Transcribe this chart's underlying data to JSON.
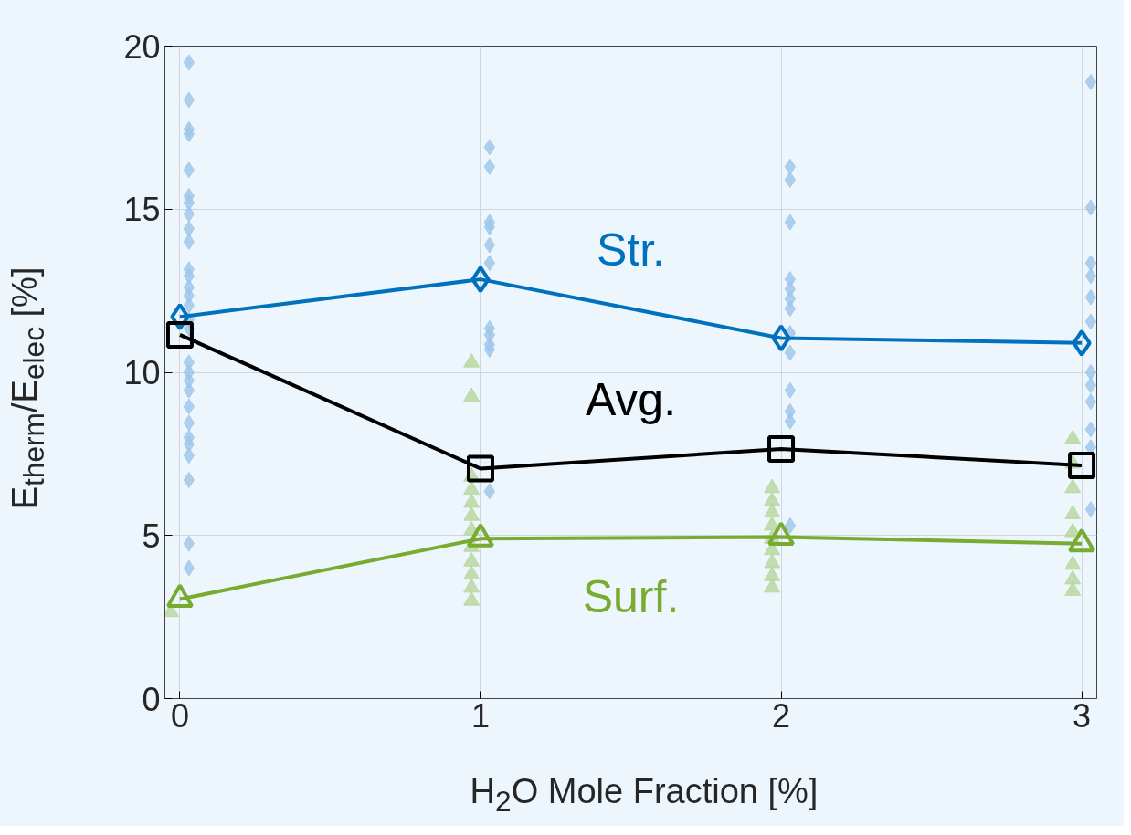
{
  "chart_data": {
    "type": "line",
    "xlabel": "H$_{2}$O Mole Fraction [%]",
    "ylabel": "E$_{therm}$/E$_{elec}$ [%]",
    "xlim": [
      -0.05,
      3.05
    ],
    "ylim": [
      0,
      20
    ],
    "xticks": [
      0,
      1,
      2,
      3
    ],
    "yticks": [
      0,
      5,
      10,
      15,
      20
    ],
    "grid": true,
    "line_style": "solid",
    "series": [
      {
        "type": "scatter",
        "marker": "diamond",
        "color": "#9cc6ea",
        "x": [
          0.03,
          0.03,
          0.03,
          0.03,
          0.03,
          0.03,
          0.03,
          0.03,
          0.03,
          0.03,
          0.03,
          0.03,
          0.03,
          0.03,
          0.03,
          0.03,
          0.03,
          0.03,
          0.03,
          0.03,
          0.03,
          0.03,
          0.03,
          0.03,
          0.03,
          0.03,
          0.03,
          0.03,
          0.03,
          1.03,
          1.03,
          1.03,
          1.03,
          1.03,
          1.03,
          1.03,
          1.03,
          1.03,
          1.03,
          1.03,
          2.03,
          2.03,
          2.03,
          2.03,
          2.03,
          2.03,
          2.03,
          2.03,
          2.03,
          2.03,
          2.03,
          2.03,
          2.03,
          3.03,
          3.03,
          3.03,
          3.03,
          3.03,
          3.03,
          3.03,
          3.03,
          3.03,
          3.03,
          3.03,
          3.03
        ],
        "values": [
          19.5,
          18.35,
          17.45,
          17.3,
          16.2,
          15.4,
          15.2,
          14.85,
          14.4,
          14.0,
          13.15,
          12.95,
          12.6,
          12.35,
          12.05,
          11.6,
          11.35,
          10.3,
          10.0,
          9.75,
          9.45,
          8.95,
          8.45,
          8.0,
          7.8,
          7.45,
          6.7,
          4.75,
          4.0,
          16.9,
          16.3,
          14.6,
          14.45,
          13.9,
          13.35,
          11.35,
          11.15,
          10.85,
          10.7,
          6.35,
          16.3,
          15.9,
          14.6,
          12.85,
          12.55,
          12.25,
          11.95,
          11.2,
          10.6,
          9.45,
          8.8,
          8.5,
          5.3,
          18.9,
          15.05,
          13.35,
          12.95,
          12.3,
          11.55,
          10.0,
          9.6,
          9.1,
          8.25,
          7.7,
          5.8
        ]
      },
      {
        "type": "scatter",
        "marker": "triangle",
        "color": "#b5d69a",
        "x": [
          -0.03,
          0.97,
          0.97,
          0.97,
          0.97,
          0.97,
          0.97,
          0.97,
          0.97,
          0.97,
          0.97,
          0.97,
          0.97,
          1.97,
          1.97,
          1.97,
          1.97,
          1.97,
          1.97,
          1.97,
          1.97,
          1.97,
          2.97,
          2.97,
          2.97,
          2.97,
          2.97,
          2.97,
          2.97,
          2.97
        ],
        "values": [
          2.65,
          10.3,
          9.25,
          6.8,
          6.4,
          6.0,
          5.6,
          5.15,
          4.65,
          4.2,
          3.8,
          3.4,
          3.0,
          6.45,
          6.05,
          5.7,
          5.3,
          4.9,
          4.55,
          4.15,
          3.75,
          3.4,
          7.95,
          7.2,
          6.45,
          5.65,
          5.1,
          4.1,
          3.65,
          3.3
        ]
      },
      {
        "name": "Str.",
        "marker": "diamond",
        "color": "#0072bd",
        "x": [
          0,
          1,
          2,
          3
        ],
        "values": [
          11.7,
          12.85,
          11.05,
          10.9
        ]
      },
      {
        "name": "Avg.",
        "marker": "square",
        "color": "#000000",
        "x": [
          0,
          1,
          2,
          3
        ],
        "values": [
          11.15,
          7.05,
          7.65,
          7.15
        ]
      },
      {
        "name": "Surf.",
        "marker": "triangle",
        "color": "#77ac30",
        "x": [
          0,
          1,
          2,
          3
        ],
        "values": [
          3.05,
          4.9,
          4.95,
          4.75
        ]
      }
    ]
  }
}
